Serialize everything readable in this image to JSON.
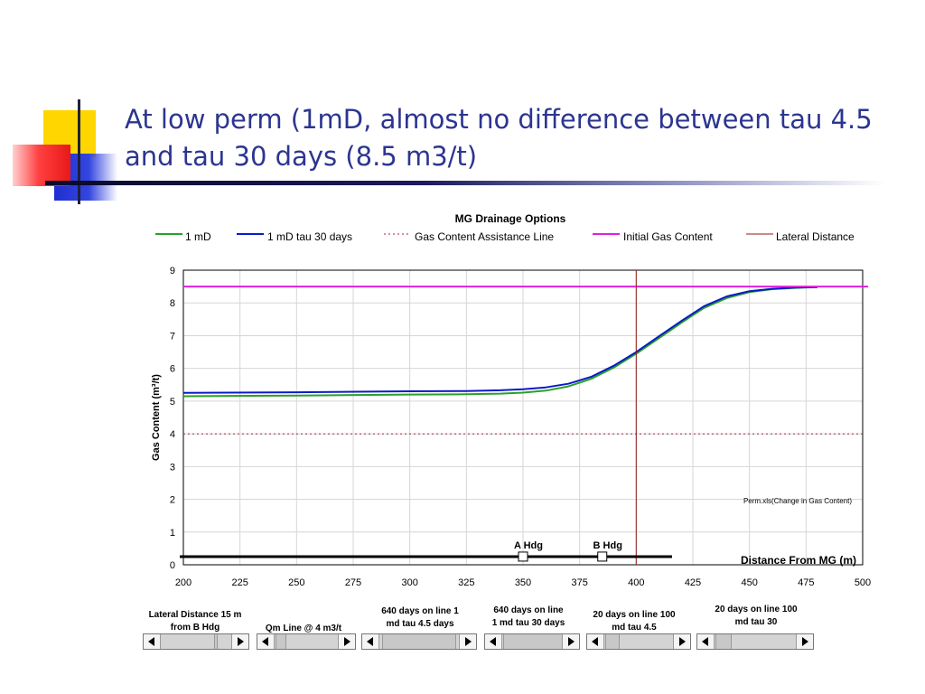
{
  "slide": {
    "title": "At low perm (1mD, almost no difference between tau 4.5 and tau 30 days (8.5 m3/t)"
  },
  "chart_data": {
    "type": "line",
    "title": "MG  Drainage Options",
    "xlabel": "Distance From MG (m)",
    "ylabel": "Gas Content (m³/t)",
    "xlim": [
      200,
      500
    ],
    "ylim": [
      0,
      9
    ],
    "x_ticks": [
      200,
      225,
      250,
      275,
      300,
      325,
      350,
      375,
      400,
      425,
      450,
      475,
      500
    ],
    "y_ticks": [
      0,
      1,
      2,
      3,
      4,
      5,
      6,
      7,
      8,
      9
    ],
    "grid": true,
    "legend_position": "top",
    "colors": {
      "1 mD": "#2aa02a",
      "1 mD tau 30 days": "#0a1ac8",
      "Gas Content Assistance Line": "#a8243a",
      "Initial Gas Content": "#e020e0",
      "Lateral Distance": "#8b1a1a"
    },
    "series": [
      {
        "name": "1 mD",
        "x": [
          200,
          250,
          300,
          325,
          340,
          350,
          360,
          370,
          380,
          390,
          400,
          410,
          420,
          430,
          440,
          450,
          460,
          470,
          480
        ],
        "values": [
          5.15,
          5.17,
          5.2,
          5.21,
          5.23,
          5.26,
          5.32,
          5.45,
          5.68,
          6.02,
          6.45,
          6.92,
          7.4,
          7.85,
          8.15,
          8.33,
          8.42,
          8.46,
          8.48
        ]
      },
      {
        "name": "1 mD tau 30 days",
        "x": [
          200,
          250,
          300,
          325,
          340,
          350,
          360,
          370,
          380,
          390,
          400,
          410,
          420,
          430,
          440,
          450,
          460,
          470,
          480
        ],
        "values": [
          5.25,
          5.27,
          5.3,
          5.31,
          5.33,
          5.36,
          5.42,
          5.53,
          5.74,
          6.08,
          6.5,
          6.98,
          7.45,
          7.9,
          8.2,
          8.36,
          8.43,
          8.47,
          8.48
        ]
      },
      {
        "name": "Gas Content Assistance Line",
        "x": [
          200,
          500
        ],
        "values": [
          4,
          4
        ],
        "style": "dotted"
      },
      {
        "name": "Initial Gas Content",
        "x": [
          200,
          500
        ],
        "values": [
          8.5,
          8.5
        ]
      },
      {
        "name": "Lateral Distance",
        "x": [
          400,
          400
        ],
        "values": [
          0,
          9
        ]
      }
    ],
    "annotations": [
      {
        "text": "Perm.xls(Change in Gas Content)"
      },
      {
        "text": "A Hdg",
        "x": 350,
        "y": 0.25
      },
      {
        "text": "B Hdg",
        "x": 385,
        "y": 0.25
      }
    ],
    "baseline": {
      "x": [
        200,
        415
      ],
      "y": 0.25
    }
  },
  "controls": [
    {
      "label_lines": [
        "Lateral Distance 15 m",
        "from B Hdg"
      ]
    },
    {
      "label_lines": [
        "Qm Line @ 4 m3/t"
      ]
    },
    {
      "label_lines": [
        "640  days on line 1",
        "md tau 4.5 days"
      ]
    },
    {
      "label_lines": [
        "640  days on line",
        "1 md tau 30 days"
      ]
    },
    {
      "label_lines": [
        "20  days on line 100",
        "md tau 4.5"
      ]
    },
    {
      "label_lines": [
        "20  days on line 100",
        "md tau 30"
      ]
    }
  ]
}
